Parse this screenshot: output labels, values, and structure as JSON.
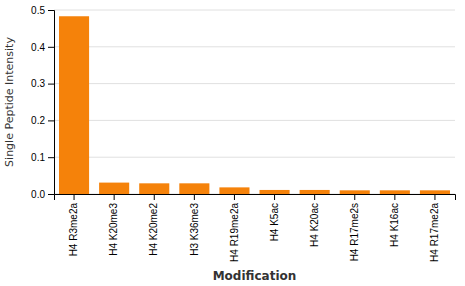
{
  "chart_data": {
    "type": "bar",
    "xlabel": "Modification",
    "ylabel": "Single Peptide Intensity",
    "categories": [
      "H4 R3me2a",
      "H4 K20me3",
      "H4 K20me2",
      "H3 K36me3",
      "H4 R19me2a",
      "H4 K5ac",
      "H4 K20ac",
      "H4 R17me2s",
      "H4 K16ac",
      "H4 R17me2a"
    ],
    "values": [
      0.483,
      0.031,
      0.029,
      0.029,
      0.018,
      0.011,
      0.011,
      0.01,
      0.01,
      0.01
    ],
    "color": "#f5820a",
    "ylim": [
      0,
      0.5
    ],
    "yticks": [
      {
        "value": 0.0,
        "label": "0.0"
      },
      0.1,
      0.2,
      0.3,
      0.4,
      0.5
    ],
    "grid": true
  }
}
